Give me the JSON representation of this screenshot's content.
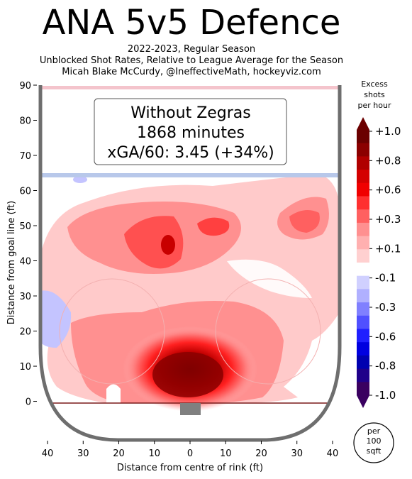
{
  "header": {
    "title": "ANA 5v5 Defence",
    "subtitle_lines": [
      "2022-2023, Regular Season",
      "Unblocked Shot Rates, Relative to League Average for the Season",
      "Micah Blake McCurdy, @IneffectiveMath, hockeyviz.com"
    ]
  },
  "annotation": {
    "lines": [
      "Without Zegras",
      "1868 minutes",
      "xGA/60: 3.45 (+34%)"
    ]
  },
  "colorbar": {
    "title_lines": [
      "Excess",
      "shots",
      "per hour"
    ],
    "tick_labels": [
      "+1.0",
      "+0.8",
      "+0.6",
      "+0.3",
      "+0.1",
      "-0.1",
      "-0.3",
      "-0.6",
      "-0.8",
      "-1.0"
    ],
    "colors": [
      "#6b0000",
      "#8b0000",
      "#b00000",
      "#d40000",
      "#f00000",
      "#ff3030",
      "#ff6060",
      "#ff9090",
      "#ffb0b0",
      "#ffd0d0",
      "#ffffff",
      "#d0d0ff",
      "#b0b0ff",
      "#8080ff",
      "#5050ff",
      "#2020ff",
      "#0000e0",
      "#0000b0",
      "#20008a",
      "#3a0060"
    ]
  },
  "unit_badge": {
    "lines": [
      "per",
      "100",
      "sqft"
    ]
  },
  "chart_data": {
    "type": "heatmap",
    "xlabel": "Distance from centre of rink (ft)",
    "ylabel": "Distance from goal line (ft)",
    "xlim": [
      -42,
      42
    ],
    "ylim": [
      -11,
      90
    ],
    "x_ticks": [
      -40,
      -30,
      -20,
      -10,
      0,
      10,
      20,
      30,
      40
    ],
    "x_tick_labels": [
      "40",
      "30",
      "20",
      "10",
      "0",
      "10",
      "20",
      "30",
      "40"
    ],
    "y_ticks": [
      0,
      10,
      20,
      30,
      40,
      50,
      60,
      70,
      80,
      90
    ],
    "y_tick_labels": [
      "0",
      "10",
      "20",
      "30",
      "40",
      "50",
      "60",
      "70",
      "80",
      "90"
    ],
    "hotspots": [
      {
        "x": 0,
        "y": 7,
        "excess": 1.0
      },
      {
        "x": -6,
        "y": 45,
        "excess": 0.6
      },
      {
        "x": 8,
        "y": 51,
        "excess": 0.45
      },
      {
        "x": 33,
        "y": 52,
        "excess": 0.35
      },
      {
        "x": -30,
        "y": 50,
        "excess": 0.15
      },
      {
        "x": -37,
        "y": 26,
        "excess": -0.1
      },
      {
        "x": -31,
        "y": 63,
        "excess": -0.1
      }
    ]
  }
}
